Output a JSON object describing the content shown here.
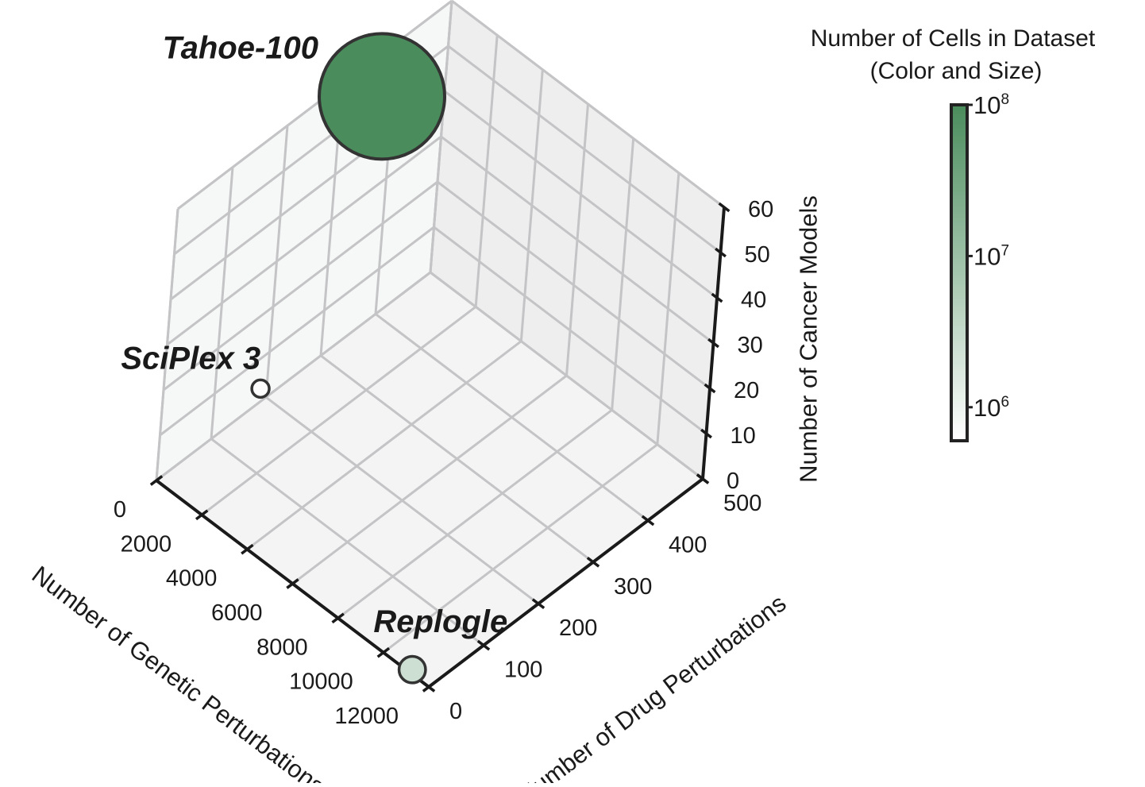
{
  "chart_data": {
    "type": "scatter",
    "projection": "3d",
    "grid": true,
    "axes": {
      "x": {
        "label": "Number of Genetic Perturbations",
        "lim": [
          0,
          12000
        ],
        "ticks": [
          0,
          2000,
          4000,
          6000,
          8000,
          10000,
          12000
        ]
      },
      "y": {
        "label": "Number of Drug Perturbations",
        "lim": [
          0,
          500
        ],
        "ticks": [
          0,
          100,
          200,
          300,
          400,
          500
        ]
      },
      "z": {
        "label": "Number of Cancer Models",
        "lim": [
          0,
          60
        ],
        "ticks": [
          0,
          10,
          20,
          30,
          40,
          50,
          60
        ]
      }
    },
    "points": [
      {
        "name": "Tahoe-100",
        "genetic": 0,
        "drug": 379,
        "cancer_models": 50,
        "cells": 100000000
      },
      {
        "name": "SciPlex 3",
        "genetic": 0,
        "drug": 188,
        "cancer_models": 3,
        "cells": 650000
      },
      {
        "name": "Replogle",
        "genetic": 11258,
        "drug": 0,
        "cancer_models": 1,
        "cells": 2500000
      }
    ],
    "colorbar": {
      "title_line1": "Number of Cells in Dataset",
      "title_line2": "(Color and Size)",
      "scale": "log",
      "min": 600000,
      "max": 100000000,
      "ticks": [
        {
          "value": 1000000,
          "base": "10",
          "exp": "6"
        },
        {
          "value": 10000000,
          "base": "10",
          "exp": "7"
        },
        {
          "value": 100000000,
          "base": "10",
          "exp": "8"
        }
      ],
      "color_low": "#ffffff",
      "color_high": "#4a8c5c"
    },
    "colors": {
      "marker_edge": "#333333",
      "pane": "#f2f2f2",
      "grid": "#c4c4c6",
      "axis_line": "#1a1a1a"
    }
  }
}
